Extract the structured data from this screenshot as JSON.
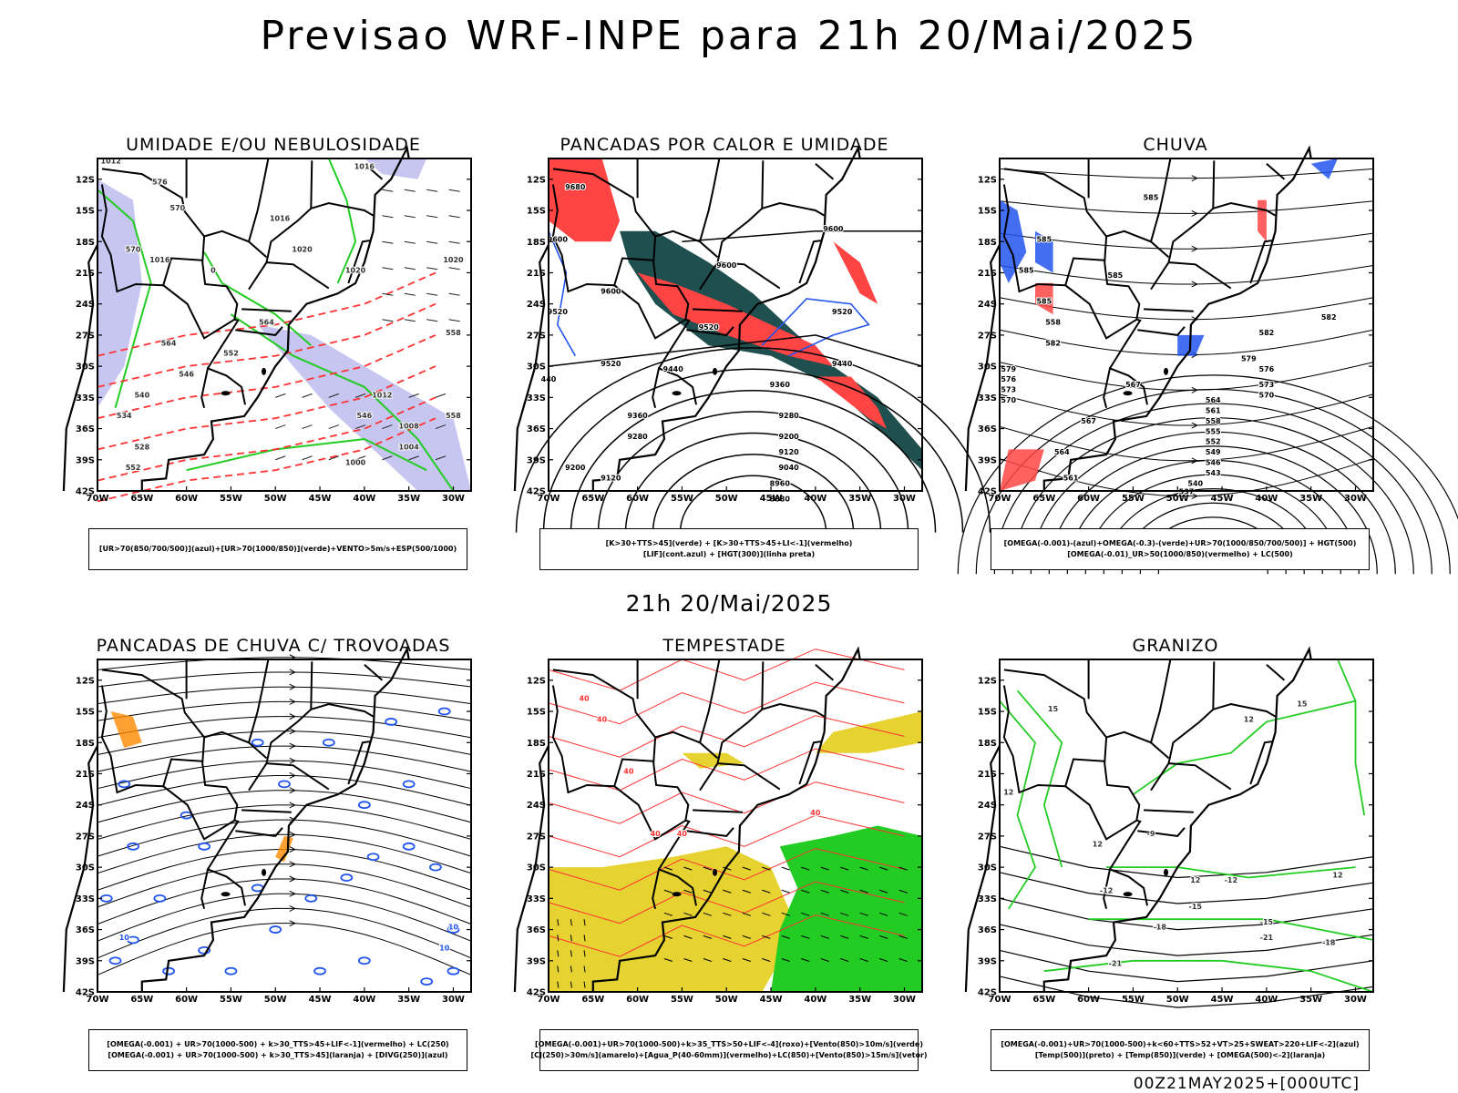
{
  "header": {
    "title": "Previsao WRF-INPE  para 21h 20/Mai/2025"
  },
  "mid_date": "21h 20/Mai/2025",
  "footer_stamp": "00Z21MAY2025+[000UTC]",
  "axes": {
    "lat_labels": [
      "12S",
      "15S",
      "18S",
      "21S",
      "24S",
      "27S",
      "30S",
      "33S",
      "36S",
      "39S",
      "42S"
    ],
    "lon_labels": [
      "70W",
      "65W",
      "60W",
      "55W",
      "50W",
      "45W",
      "40W",
      "35W",
      "30W"
    ]
  },
  "colors": {
    "land_border": "#000000",
    "humidity_blue": "#b8b8ee",
    "green_contour": "#22cc22",
    "red_contour": "#ff3333",
    "dark_teal": "#1f4f4f",
    "red_fill": "#ff4444",
    "blue_contour": "#2255ee",
    "yellow_fill": "#e6d230",
    "green_fill": "#22cc22",
    "orange_contour": "#ff8800"
  },
  "panels": [
    {
      "id": "umidade",
      "title": "UMIDADE E/OU NEBULOSIDADE",
      "legend": [
        "[UR>70(850/700/500)](azul)+[UR>70(1000/850)](verde)+VENTO>5m/s+ESP(500/1000)"
      ],
      "contour_labels": [
        "1012",
        "1016",
        "1016",
        "1020",
        "1020",
        "1016",
        "1020",
        "1012",
        "1008",
        "1004",
        "1000",
        "576",
        "570",
        "564",
        "558",
        "552",
        "546",
        "540",
        "534",
        "528",
        "552",
        "564",
        "570",
        "558",
        "546",
        "0"
      ]
    },
    {
      "id": "pancadas_calor",
      "title": "PANCADAS POR CALOR E UMIDADE",
      "legend": [
        "[K>30+TTS>45](verde) + [K>30+TTS>45+LI<-1](vermelho)",
        "[LIF](cont.azul) + [HGT(300)](linha preta)"
      ],
      "contour_labels": [
        "9680",
        "9600",
        "9600",
        "9600",
        "9520",
        "9520",
        "9520",
        "9440",
        "9440",
        "9360",
        "9360",
        "9280",
        "9280",
        "9200",
        "9200",
        "9120",
        "9120",
        "9040",
        "8960",
        "8880",
        "9600",
        "9520",
        "440"
      ]
    },
    {
      "id": "chuva",
      "title": "CHUVA",
      "legend": [
        "[OMEGA(-0.001)-(azul)+OMEGA(-0.3)-(verde)+UR>70(1000/850/700/500)] + HGT(500)",
        "[OMEGA(-0.01)_UR>50(1000/850)(vermelho) + LC(500)"
      ],
      "contour_labels": [
        "585",
        "585",
        "585",
        "585",
        "585",
        "582",
        "582",
        "579",
        "576",
        "573",
        "570",
        "567",
        "564",
        "561",
        "558",
        "555",
        "552",
        "549",
        "546",
        "543",
        "540",
        "537",
        "579",
        "576",
        "573",
        "570",
        "567",
        "564",
        "561",
        "558",
        "582"
      ]
    },
    {
      "id": "pancadas_trovoadas",
      "title": "PANCADAS DE CHUVA C/ TROVOADAS",
      "legend": [
        "[OMEGA(-0.001) + UR>70(1000-500) + k>30_TTS>45+LIF<-1](vermelho) + LC(250)",
        "[OMEGA(-0.001) + UR>70(1000-500) + k>30_TTS>45](laranja) + [DIVG(250)](azul)"
      ],
      "contour_labels": [
        "10",
        "10",
        "10"
      ]
    },
    {
      "id": "tempestade",
      "title": "TEMPESTADE",
      "legend": [
        "[OMEGA(-0.001)+UR>70(1000-500)+k>35_TTS>50+LIF<-4](roxo)+[Vento(850)>10m/s](verde)",
        "[CJ(250)>30m/s](amarelo)+[Agua_P(40-60mm)](vermelho)+LC(850)+[Vento(850)>15m/s](vetor)"
      ],
      "contour_labels": [
        "40",
        "40",
        "40",
        "40",
        "40",
        "40"
      ]
    },
    {
      "id": "granizo",
      "title": "GRANIZO",
      "legend": [
        "[OMEGA(-0.001)+UR>70(1000-500)+k<60+TTS>52+VT>25+SWEAT>220+LIF<-2](azul)",
        "[Temp(500)](preto) + [Temp(850)](verde) + [OMEGA(500)<-2](laranja)"
      ],
      "contour_labels": [
        "15",
        "12",
        "12",
        "12",
        "12",
        "-9",
        "-12",
        "-12",
        "-15",
        "-15",
        "-18",
        "-21",
        "-21",
        "-18",
        "15",
        "12"
      ]
    }
  ]
}
